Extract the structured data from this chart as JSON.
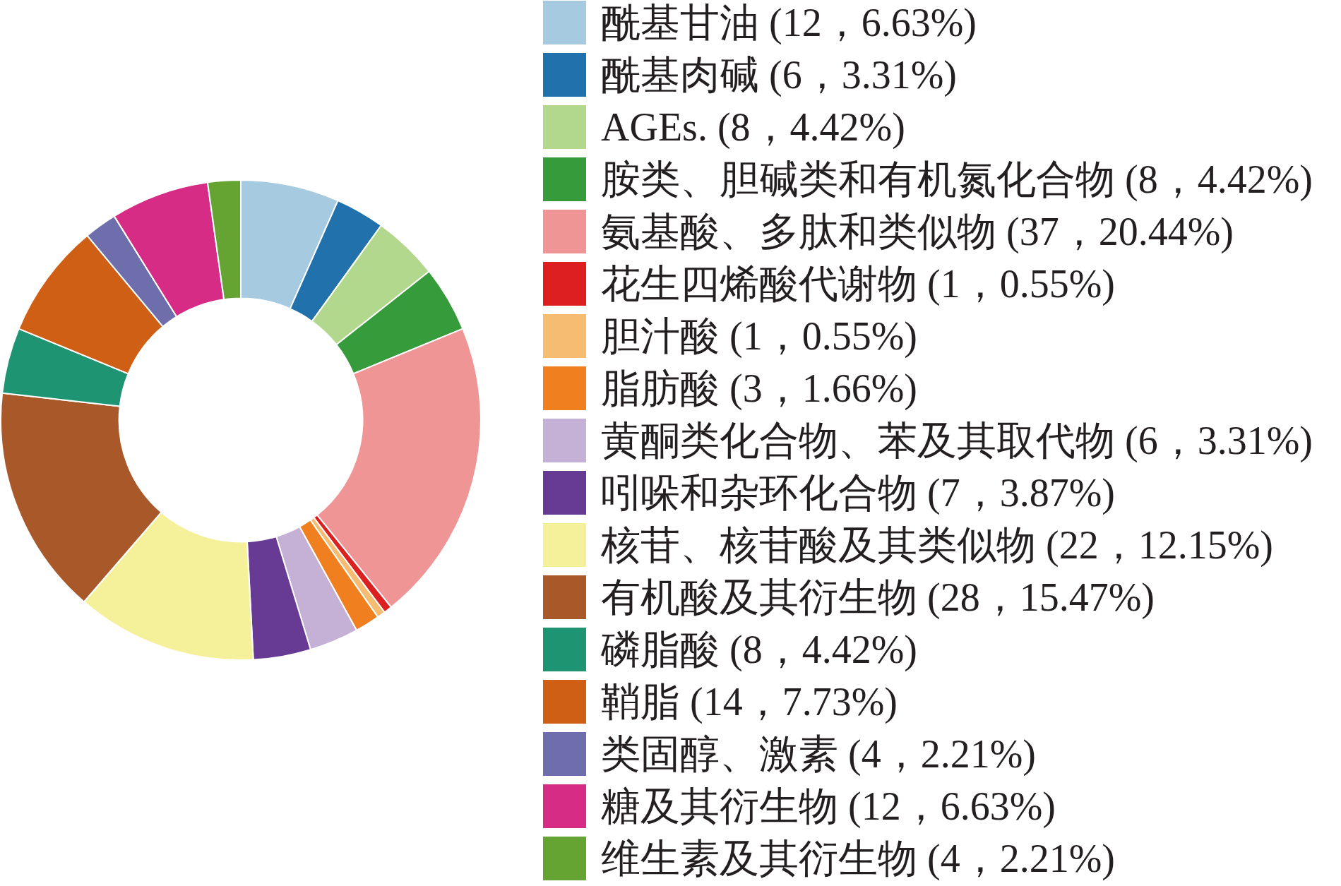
{
  "chart_data": {
    "type": "donut",
    "categories": [
      "酰基甘油 (12，6.63%)",
      "酰基肉碱 (6，3.31%)",
      "AGEs. (8，4.42%)",
      "胺类、胆碱类和有机氮化合物 (8，4.42%)",
      "氨基酸、多肽和类似物 (37，20.44%)",
      "花生四烯酸代谢物 (1，0.55%)",
      "胆汁酸 (1，0.55%)",
      "脂肪酸 (3，1.66%)",
      "黄酮类化合物、苯及其取代物 (6，3.31%)",
      "吲哚和杂环化合物 (7，3.87%)",
      "核苷、核苷酸及其类似物 (22，12.15%)",
      "有机酸及其衍生物 (28，15.47%)",
      "磷脂酸 (8，4.42%)",
      "鞘脂 (14，7.73%)",
      "类固醇、激素 (4，2.21%)",
      "糖及其衍生物 (12，6.63%)",
      "维生素及其衍生物 (4，2.21%)"
    ],
    "values": [
      12,
      6,
      8,
      8,
      37,
      1,
      1,
      3,
      6,
      7,
      22,
      28,
      8,
      14,
      4,
      12,
      4
    ],
    "colors": [
      "#a6cbe0",
      "#2171ad",
      "#b2d88d",
      "#369b3a",
      "#f09595",
      "#dc2020",
      "#f6bd72",
      "#ef7f1f",
      "#c5b1d6",
      "#673a93",
      "#f5f19a",
      "#a9582a",
      "#1f9473",
      "#d05f16",
      "#6f6eac",
      "#d72c85",
      "#65a332"
    ],
    "legend": "right"
  }
}
